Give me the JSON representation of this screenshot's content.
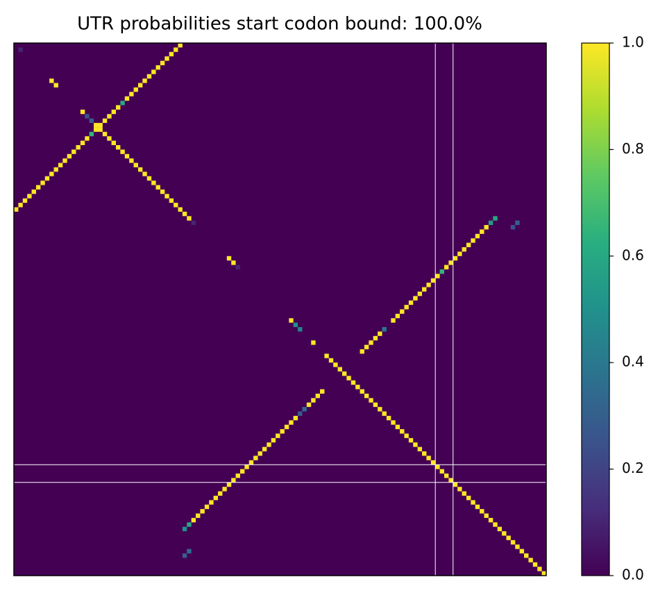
{
  "chart_data": {
    "type": "heatmap",
    "title": "UTR probabilities start codon bound: 100.0%",
    "colormap": "viridis",
    "xlim": [
      0,
      120
    ],
    "ylim": [
      120,
      0
    ],
    "x": [
      0,
      1,
      2,
      3,
      4,
      5,
      6,
      7,
      8,
      9,
      10,
      11,
      12,
      13,
      14,
      15,
      16,
      17,
      18,
      19,
      20,
      21,
      22,
      23,
      24,
      25,
      26,
      27,
      28,
      29,
      30,
      31,
      32,
      33,
      34,
      35,
      36,
      37,
      15,
      16,
      17,
      18,
      19,
      20,
      21,
      22,
      23,
      24,
      25,
      26,
      27,
      28,
      29,
      30,
      31,
      32,
      33,
      34,
      35,
      36,
      37,
      38,
      39,
      40,
      1,
      8,
      9,
      48,
      49,
      50,
      62,
      63,
      64,
      67,
      70,
      71,
      72,
      73,
      74,
      75,
      76,
      77,
      78,
      79,
      80,
      81,
      82,
      83,
      84,
      85,
      86,
      87,
      88,
      89,
      90,
      91,
      92,
      93,
      94,
      95,
      96,
      97,
      98,
      99,
      100,
      101,
      102,
      103,
      104,
      105,
      106,
      107,
      108,
      109,
      110,
      111,
      112,
      113,
      114,
      115,
      116,
      117,
      118,
      119,
      38,
      39,
      40,
      41,
      42,
      43,
      44,
      45,
      46,
      47,
      48,
      49,
      50,
      51,
      52,
      53,
      54,
      55,
      56,
      57,
      58,
      59,
      60,
      61,
      62,
      63,
      64,
      65,
      66,
      67,
      68,
      69,
      78,
      79,
      80,
      81,
      82,
      83,
      85,
      86,
      87,
      88,
      89,
      90,
      91,
      92,
      93,
      94,
      95,
      96,
      97,
      98,
      99,
      100,
      101,
      102,
      103,
      104,
      105,
      106,
      107,
      108,
      38,
      39,
      112,
      113
    ],
    "y": [
      37,
      36,
      35,
      34,
      33,
      32,
      31,
      30,
      29,
      28,
      27,
      26,
      25,
      24,
      23,
      22,
      21,
      20,
      19,
      18,
      17,
      16,
      15,
      14,
      13,
      12,
      11,
      10,
      9,
      8,
      7,
      6,
      5,
      4,
      3,
      2,
      1,
      0,
      15,
      16,
      17,
      18,
      19,
      20,
      21,
      22,
      23,
      24,
      25,
      26,
      27,
      28,
      29,
      30,
      31,
      32,
      33,
      34,
      35,
      36,
      37,
      38,
      39,
      40,
      1,
      8,
      9,
      48,
      49,
      50,
      62,
      63,
      64,
      67,
      70,
      71,
      72,
      73,
      74,
      75,
      76,
      77,
      78,
      79,
      80,
      81,
      82,
      83,
      84,
      85,
      86,
      87,
      88,
      89,
      90,
      91,
      92,
      93,
      94,
      95,
      96,
      97,
      98,
      99,
      100,
      101,
      102,
      103,
      104,
      105,
      106,
      107,
      108,
      109,
      110,
      111,
      112,
      113,
      114,
      115,
      116,
      117,
      118,
      119,
      109,
      108,
      107,
      106,
      105,
      104,
      103,
      102,
      101,
      100,
      99,
      98,
      97,
      96,
      95,
      94,
      93,
      92,
      91,
      90,
      89,
      88,
      87,
      86,
      85,
      84,
      83,
      82,
      81,
      80,
      79,
      78,
      69,
      68,
      67,
      66,
      65,
      64,
      62,
      61,
      60,
      59,
      58,
      57,
      56,
      55,
      54,
      53,
      52,
      51,
      50,
      49,
      48,
      47,
      46,
      45,
      44,
      43,
      42,
      41,
      40,
      39,
      115,
      114,
      41,
      40
    ],
    "values": [
      1,
      1,
      1,
      1,
      1,
      1,
      1,
      1,
      1,
      1,
      1,
      1,
      1,
      1,
      1,
      1,
      1,
      0.65,
      1,
      1,
      1,
      1,
      1,
      1,
      0.6,
      1,
      1,
      1,
      1,
      1,
      1,
      1,
      1,
      1,
      1,
      1,
      1,
      1,
      1,
      0.25,
      0.3,
      1,
      1,
      1,
      1,
      1,
      1,
      1,
      1,
      1,
      1,
      1,
      1,
      1,
      1,
      1,
      1,
      1,
      1,
      1,
      1,
      1,
      1,
      0.1,
      0.1,
      1,
      1,
      1,
      1,
      0.1,
      1,
      0.5,
      0.45,
      1,
      1,
      1,
      1,
      1,
      1,
      1,
      1,
      1,
      1,
      1,
      1,
      1,
      1,
      1,
      1,
      1,
      1,
      1,
      1,
      1,
      1,
      1,
      1,
      1,
      1,
      1,
      1,
      1,
      1,
      1,
      1,
      1,
      1,
      1,
      1,
      1,
      1,
      1,
      1,
      1,
      1,
      1,
      1,
      1,
      1,
      1,
      1,
      1,
      1,
      1,
      0.5,
      0.6,
      1,
      1,
      1,
      1,
      1,
      1,
      1,
      1,
      1,
      1,
      1,
      1,
      1,
      1,
      1,
      1,
      1,
      1,
      1,
      1,
      1,
      1,
      1,
      1,
      0.3,
      0.35,
      1,
      1,
      1,
      1,
      1,
      1,
      1,
      1,
      1,
      0.4,
      1,
      1,
      1,
      1,
      1,
      1,
      1,
      1,
      1,
      1,
      1,
      0.65,
      1,
      1,
      1,
      1,
      1,
      1,
      1,
      1,
      1,
      1,
      0.55,
      0.6,
      0.3,
      0.35,
      0.25,
      0.3
    ],
    "vlines": [
      95,
      99
    ],
    "hlines": [
      95,
      99
    ],
    "line_color": "#ffffff",
    "clim": [
      0,
      1
    ],
    "cticks": [
      {
        "value": 0,
        "label": "0.0"
      },
      {
        "value": 0.2,
        "label": "0.2"
      },
      {
        "value": 0.4,
        "label": "0.4"
      },
      {
        "value": 0.6,
        "label": "0.6"
      },
      {
        "value": 0.8,
        "label": "0.8"
      },
      {
        "value": 1,
        "label": "1.0"
      }
    ]
  }
}
